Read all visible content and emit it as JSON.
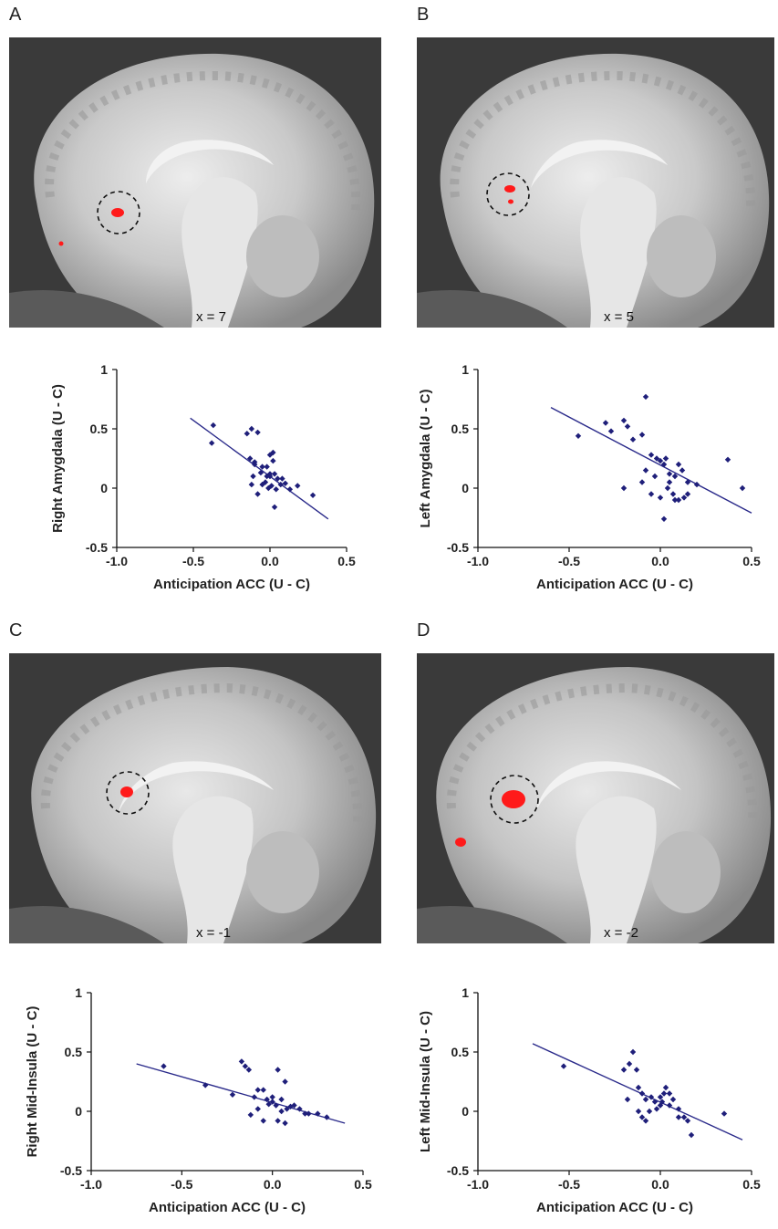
{
  "panels": [
    {
      "letter": "A",
      "slice_label": "x = 7",
      "chart_data": {
        "type": "scatter",
        "xlabel": "Anticipation ACC (U - C)",
        "ylabel": "Right Amygdala  (U - C)",
        "xlim": [
          -1.0,
          0.5
        ],
        "ylim": [
          -0.5,
          1
        ],
        "xticks": [
          "-1.0",
          "-0.5",
          "0.0",
          "0.5"
        ],
        "yticks": [
          "-0.5",
          "0",
          "0.5",
          "1"
        ],
        "x": [
          -0.37,
          -0.38,
          -0.15,
          -0.12,
          -0.08,
          -0.1,
          -0.13,
          -0.11,
          -0.06,
          -0.02,
          0.0,
          0.02,
          -0.05,
          0.0,
          0.03,
          0.05,
          -0.03,
          -0.01,
          0.01,
          0.04,
          0.07,
          0.1,
          0.13,
          0.18,
          0.28,
          0.03,
          -0.08,
          -0.1,
          -0.05,
          0.02,
          0.08,
          0.0,
          -0.02,
          -0.12
        ],
        "y": [
          0.53,
          0.38,
          0.46,
          0.5,
          0.47,
          0.22,
          0.25,
          0.1,
          0.13,
          0.18,
          0.28,
          0.23,
          0.03,
          0.1,
          0.12,
          0.08,
          0.05,
          0.0,
          0.02,
          -0.01,
          0.03,
          0.04,
          -0.01,
          0.02,
          -0.06,
          -0.16,
          -0.05,
          0.2,
          0.18,
          0.3,
          0.08,
          0.12,
          0.1,
          0.03
        ],
        "fit": {
          "x": [
            -0.52,
            0.38
          ],
          "y": [
            0.59,
            -0.26
          ]
        },
        "point_color": "#1f1f7a",
        "line_color": "#2a2a8a"
      }
    },
    {
      "letter": "B",
      "slice_label": "x = 5",
      "chart_data": {
        "type": "scatter",
        "xlabel": "Anticipation ACC (U - C)",
        "ylabel": "Left Amygdala  (U - C)",
        "xlim": [
          -1.0,
          0.5
        ],
        "ylim": [
          -0.5,
          1
        ],
        "xticks": [
          "-1.0",
          "-0.5",
          "0.0",
          "0.5"
        ],
        "yticks": [
          "-0.5",
          "0",
          "0.5",
          "1"
        ],
        "x": [
          -0.45,
          -0.3,
          -0.27,
          -0.2,
          -0.18,
          -0.15,
          -0.1,
          -0.08,
          -0.05,
          -0.02,
          0.0,
          0.02,
          0.03,
          0.05,
          0.08,
          0.1,
          0.12,
          0.15,
          0.13,
          0.07,
          0.04,
          0.0,
          -0.05,
          -0.1,
          -0.2,
          0.02,
          0.08,
          0.2,
          0.37,
          0.45,
          -0.08,
          0.05,
          0.1,
          0.15,
          -0.03
        ],
        "y": [
          0.44,
          0.55,
          0.48,
          0.57,
          0.52,
          0.41,
          0.45,
          0.77,
          0.28,
          0.25,
          0.23,
          0.2,
          0.25,
          0.12,
          0.1,
          0.2,
          0.15,
          0.05,
          -0.08,
          -0.05,
          0.0,
          -0.08,
          -0.05,
          0.05,
          0.0,
          -0.26,
          -0.1,
          0.03,
          0.24,
          0.0,
          0.15,
          0.05,
          -0.1,
          -0.05,
          0.1
        ],
        "fit": {
          "x": [
            -0.6,
            0.5
          ],
          "y": [
            0.68,
            -0.21
          ]
        },
        "point_color": "#1f1f7a",
        "line_color": "#2a2a8a"
      }
    },
    {
      "letter": "C",
      "slice_label": "x = -1",
      "chart_data": {
        "type": "scatter",
        "xlabel": "Anticipation ACC (U - C)",
        "ylabel": "Right Mid-Insula (U - C)",
        "xlim": [
          -1.0,
          0.5
        ],
        "ylim": [
          -0.5,
          1
        ],
        "xticks": [
          "-1.0",
          "-0.5",
          "0.0",
          "0.5"
        ],
        "yticks": [
          "-0.5",
          "0",
          "0.5",
          "1"
        ],
        "x": [
          -0.6,
          -0.37,
          -0.22,
          -0.17,
          -0.15,
          -0.13,
          -0.1,
          -0.08,
          -0.05,
          -0.03,
          -0.02,
          0.0,
          0.02,
          0.03,
          0.05,
          0.07,
          0.08,
          0.1,
          0.12,
          0.15,
          0.18,
          0.2,
          0.25,
          0.3,
          0.03,
          0.07,
          -0.05,
          -0.12,
          0.0,
          -0.08,
          0.05
        ],
        "y": [
          0.38,
          0.22,
          0.14,
          0.42,
          0.38,
          0.35,
          0.12,
          0.18,
          0.18,
          0.1,
          0.06,
          0.08,
          0.05,
          0.35,
          0.0,
          0.25,
          0.02,
          0.04,
          0.05,
          0.02,
          -0.02,
          -0.02,
          -0.02,
          -0.05,
          -0.08,
          -0.1,
          -0.08,
          -0.03,
          0.12,
          0.02,
          0.1
        ],
        "fit": {
          "x": [
            -0.75,
            0.4
          ],
          "y": [
            0.4,
            -0.1
          ]
        },
        "point_color": "#1f1f7a",
        "line_color": "#2a2a8a"
      }
    },
    {
      "letter": "D",
      "slice_label": "x = -2",
      "chart_data": {
        "type": "scatter",
        "xlabel": "Anticipation ACC (U - C)",
        "ylabel": "Left Mid-Insula (U - C)",
        "xlim": [
          -1.0,
          0.5
        ],
        "ylim": [
          -0.5,
          1
        ],
        "xticks": [
          "-1.0",
          "-0.5",
          "0.0",
          "0.5"
        ],
        "yticks": [
          "-0.5",
          "0",
          "0.5",
          "1"
        ],
        "x": [
          -0.53,
          -0.2,
          -0.17,
          -0.15,
          -0.13,
          -0.12,
          -0.1,
          -0.08,
          -0.05,
          -0.03,
          0.0,
          0.02,
          0.03,
          0.05,
          0.07,
          0.1,
          0.13,
          0.15,
          0.17,
          0.35,
          -0.18,
          -0.1,
          -0.08,
          -0.02,
          0.01,
          0.05,
          0.1,
          -0.12,
          -0.06,
          0.0
        ],
        "y": [
          0.38,
          0.35,
          0.4,
          0.5,
          0.35,
          0.2,
          0.15,
          0.1,
          0.12,
          0.08,
          0.05,
          0.15,
          0.2,
          0.15,
          0.1,
          0.02,
          -0.05,
          -0.08,
          -0.2,
          -0.02,
          0.1,
          -0.05,
          -0.08,
          0.02,
          0.08,
          0.05,
          -0.05,
          0.0,
          0.0,
          0.12
        ],
        "fit": {
          "x": [
            -0.7,
            0.45
          ],
          "y": [
            0.57,
            -0.24
          ]
        },
        "point_color": "#1f1f7a",
        "line_color": "#2a2a8a"
      }
    }
  ]
}
